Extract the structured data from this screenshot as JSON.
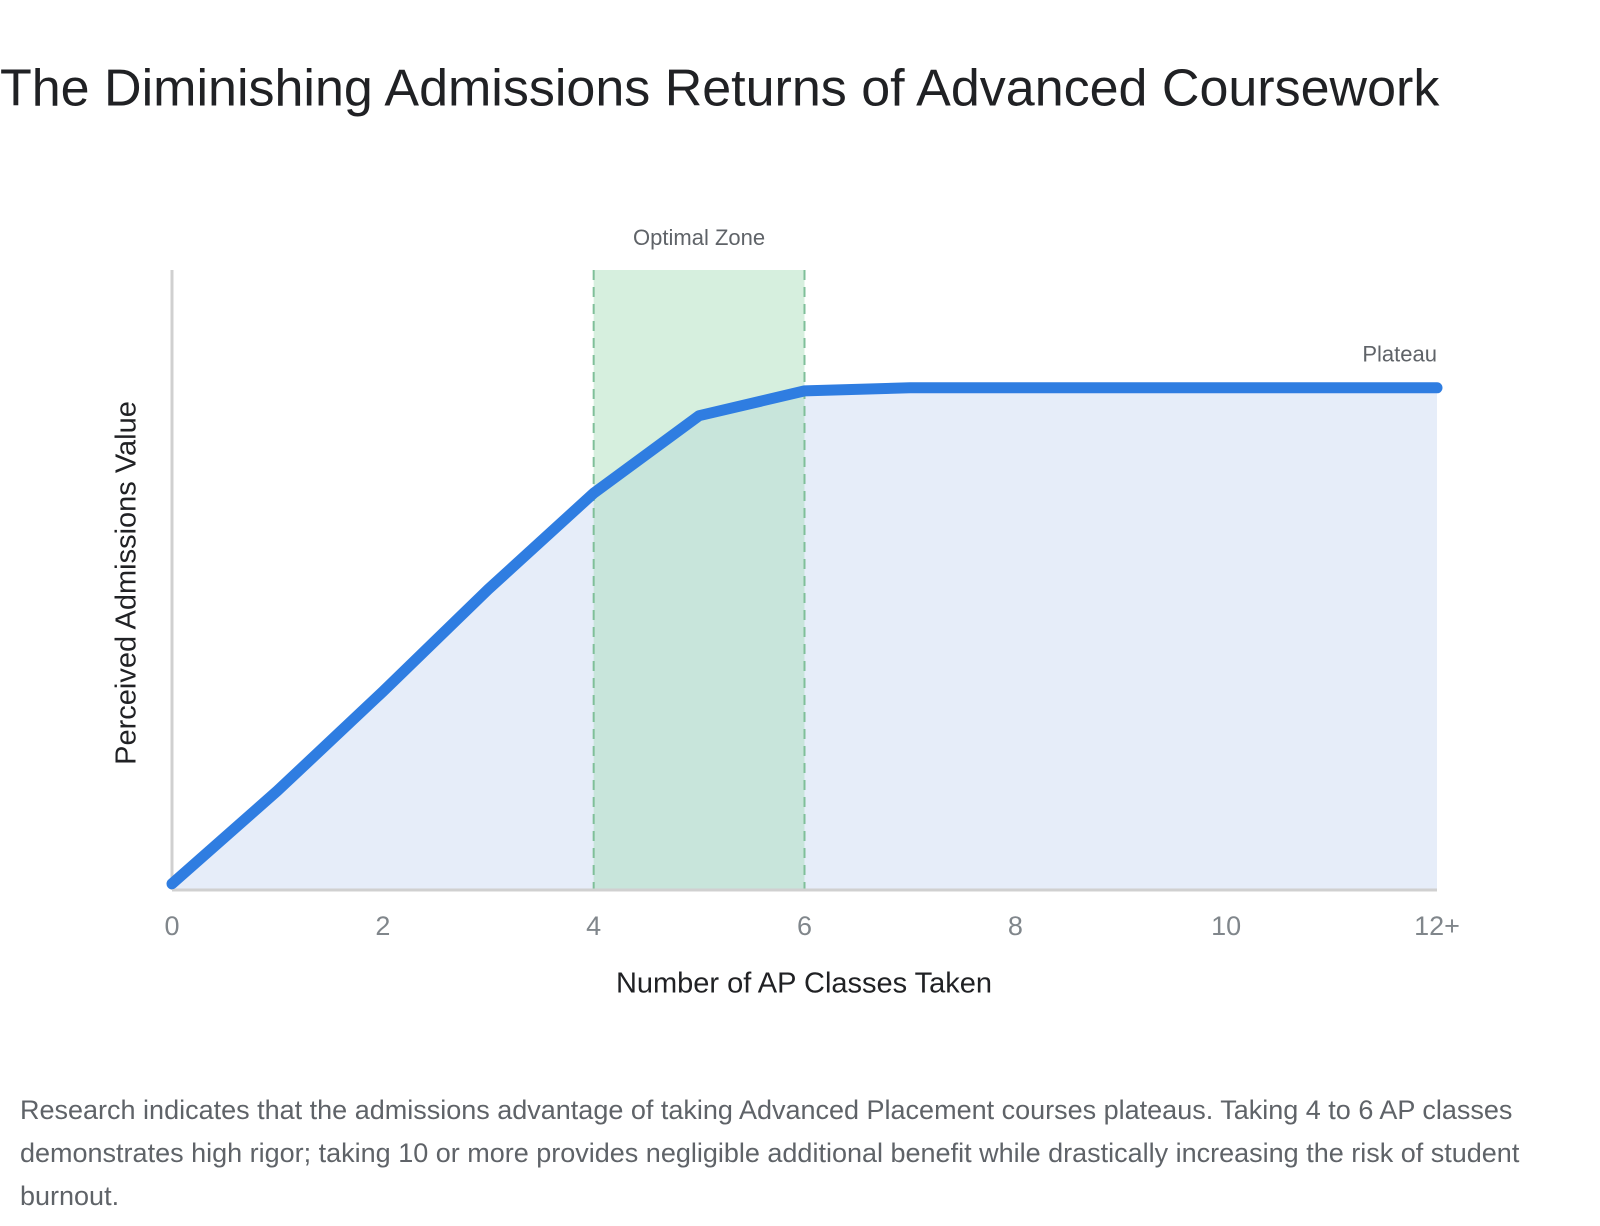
{
  "chart_data": {
    "type": "line",
    "title": "The Diminishing Admissions Returns of Advanced Coursework",
    "x_label": "Number of AP Classes Taken",
    "y_label": "Perceived Admissions Value",
    "x": [
      0,
      1,
      2,
      3,
      4,
      5,
      6,
      7,
      8,
      9,
      10,
      11,
      12
    ],
    "series": [
      {
        "name": "Perceived Admissions Value",
        "color": "#2f7de1",
        "values": [
          1,
          16,
          32,
          48.5,
          64,
          76.5,
          80.5,
          81,
          81,
          81,
          81,
          81,
          81
        ]
      }
    ],
    "area_color": "#e6edf9",
    "xlim": [
      0,
      12
    ],
    "ylim": [
      0,
      100
    ],
    "xticks": [
      0,
      2,
      4,
      6,
      8,
      10,
      {
        "value": 12,
        "label": "12+"
      }
    ],
    "zone": {
      "from": 4,
      "to": 6,
      "label": "Optimal Zone",
      "color": "#a3dcb6"
    },
    "annotation": "Plateau",
    "caption": "Research indicates that the admissions advantage of taking Advanced Placement courses plateaus. Taking 4 to 6 AP classes demonstrates high rigor; taking 10 or more provides negligible additional benefit while drastically increasing the risk of student burnout."
  }
}
